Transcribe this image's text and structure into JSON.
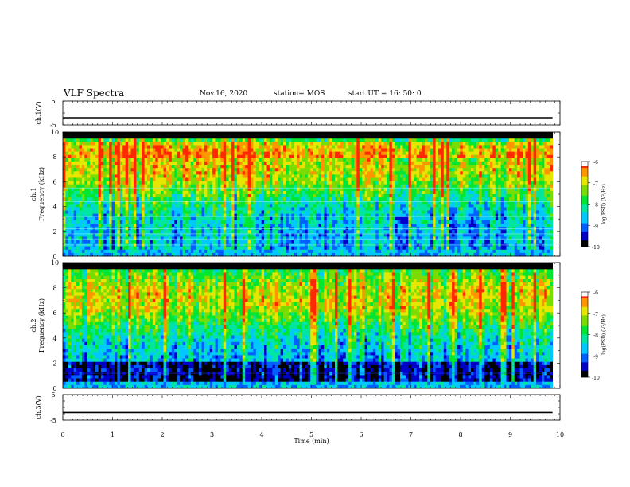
{
  "header": {
    "title": "VLF Spectra",
    "date": "Nov.16, 2020",
    "station": "station= MOS",
    "start": "start  UT =   16: 50: 0"
  },
  "colors": {
    "spectrum": [
      "#000000",
      "#0000c8",
      "#0060ff",
      "#00c8ff",
      "#00e6a0",
      "#00e632",
      "#7adc00",
      "#e6e600",
      "#ff9600",
      "#ff2800",
      "#ffffff"
    ]
  },
  "chart_data": [
    {
      "type": "line",
      "panel": "ch1-waveform",
      "ylabel": "ch.1(V)",
      "ylim": [
        -5,
        5
      ],
      "yticks": [
        "5",
        "-5"
      ],
      "series": [
        {
          "values": [
            -2,
            -2
          ]
        }
      ],
      "x": [
        0,
        9.85
      ]
    },
    {
      "type": "heatmap",
      "panel": "ch1-spectrogram",
      "ylabel_top": "ch.1",
      "ylabel": "Frequency (kHz)",
      "ylim": [
        0,
        10
      ],
      "yticks": [
        "0",
        "2",
        "4",
        "6",
        "8",
        "10"
      ],
      "xlim": [
        0,
        9.85
      ],
      "colorbar": {
        "label": "log(PSD) (V²/Hz)",
        "ticks": [
          "-6",
          "-7",
          "-8",
          "-9",
          "-10"
        ],
        "range": [
          -10,
          -6
        ]
      }
    },
    {
      "type": "heatmap",
      "panel": "ch2-spectrogram",
      "ylabel_top": "ch.2",
      "ylabel": "Frequency (kHz)",
      "ylim": [
        0,
        10
      ],
      "yticks": [
        "0",
        "2",
        "4",
        "6",
        "8",
        "10"
      ],
      "xlim": [
        0,
        9.85
      ],
      "colorbar": {
        "label": "log(PSD) (V²/Hz)",
        "ticks": [
          "-6",
          "-7",
          "-8",
          "-9",
          "-10"
        ],
        "range": [
          -10,
          -6
        ]
      }
    },
    {
      "type": "line",
      "panel": "ch3-waveform",
      "ylabel": "ch.3(V)",
      "ylim": [
        -5,
        5
      ],
      "yticks": [
        "5",
        "-5"
      ],
      "series": [
        {
          "values": [
            -2,
            -2
          ]
        }
      ],
      "x": [
        0,
        9.85
      ]
    }
  ],
  "xaxis": {
    "label": "Time (min)",
    "xlim": [
      0,
      10
    ],
    "ticks": [
      "0",
      "1",
      "2",
      "3",
      "4",
      "5",
      "6",
      "7",
      "8",
      "9",
      "10"
    ]
  }
}
